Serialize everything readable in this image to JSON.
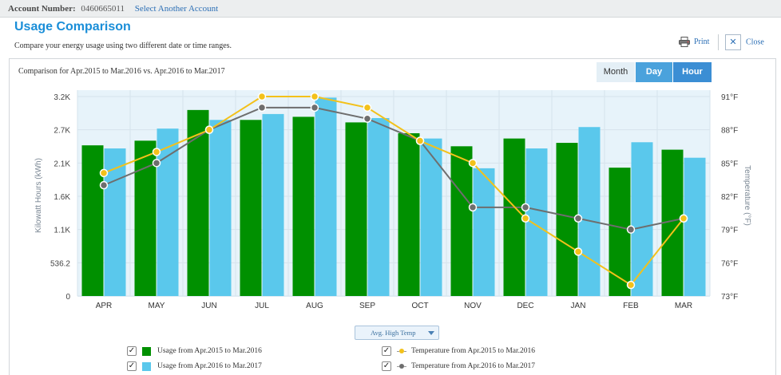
{
  "account": {
    "label": "Account Number:",
    "number": "0460665011",
    "link": "Select Another Account"
  },
  "header": {
    "title": "Usage Comparison",
    "subtitle": "Compare your energy usage using two different date or time ranges."
  },
  "toolbar": {
    "print": "Print",
    "close": "Close",
    "print_icon": "printer-icon",
    "close_icon": "close-icon"
  },
  "comparison_text": "Comparison for Apr.2015 to Mar.2016 vs. Apr.2016 to Mar.2017",
  "tabs": {
    "month": "Month",
    "day": "Day",
    "hour": "Hour",
    "active": "Day"
  },
  "series_selector": "Avg. High Temp",
  "legend": {
    "usage1": "Usage from Apr.2015 to Mar.2016",
    "usage2": "Usage from Apr.2016 to Mar.2017",
    "temp1": "Temperature from Apr.2015 to Mar.2016",
    "temp2": "Temperature from Apr.2016 to Mar.2017"
  },
  "colors": {
    "usage1": "#009000",
    "usage2": "#5ac8ec",
    "temp1": "#f3c11a",
    "temp2": "#6e6e6e",
    "accent": "#1a8ed8"
  },
  "chart_data": {
    "type": "bar",
    "categories": [
      "APR",
      "MAY",
      "JUN",
      "JUL",
      "AUG",
      "SEP",
      "OCT",
      "NOV",
      "DEC",
      "JAN",
      "FEB",
      "MAR"
    ],
    "y_left": {
      "label": "Kilowatt Hours (kWh)",
      "ticks": [
        "0",
        "536.2",
        "1.1K",
        "1.6K",
        "2.1K",
        "2.7K",
        "3.2K"
      ],
      "lim": [
        0,
        3217
      ]
    },
    "y_right": {
      "label": "Temperature (°F)",
      "ticks": [
        "73°F",
        "76°F",
        "79°F",
        "82°F",
        "85°F",
        "88°F",
        "91°F"
      ],
      "lim": [
        73,
        91
      ]
    },
    "series": [
      {
        "name": "Usage from Apr.2015 to Mar.2016",
        "type": "bar",
        "axis": "left",
        "values": [
          2430,
          2505,
          3000,
          2840,
          2890,
          2800,
          2625,
          2415,
          2540,
          2470,
          2070,
          2360
        ]
      },
      {
        "name": "Usage from Apr.2016 to Mar.2017",
        "type": "bar",
        "axis": "left",
        "values": [
          2380,
          2700,
          2840,
          2935,
          3200,
          2870,
          2540,
          2060,
          2380,
          2725,
          2480,
          2230
        ]
      },
      {
        "name": "Temperature from Apr.2015 to Mar.2016",
        "type": "line",
        "axis": "right",
        "values": [
          84.1,
          86.0,
          88.0,
          91.0,
          91.0,
          90.0,
          87.0,
          85.0,
          80.0,
          77.0,
          74.0,
          80.0
        ]
      },
      {
        "name": "Temperature from Apr.2016 to Mar.2017",
        "type": "line",
        "axis": "right",
        "values": [
          83.0,
          85.0,
          88.0,
          90.0,
          90.0,
          89.0,
          87.0,
          81.0,
          81.0,
          80.0,
          79.0,
          80.0
        ]
      }
    ],
    "grid": true,
    "legend_position": "bottom"
  }
}
